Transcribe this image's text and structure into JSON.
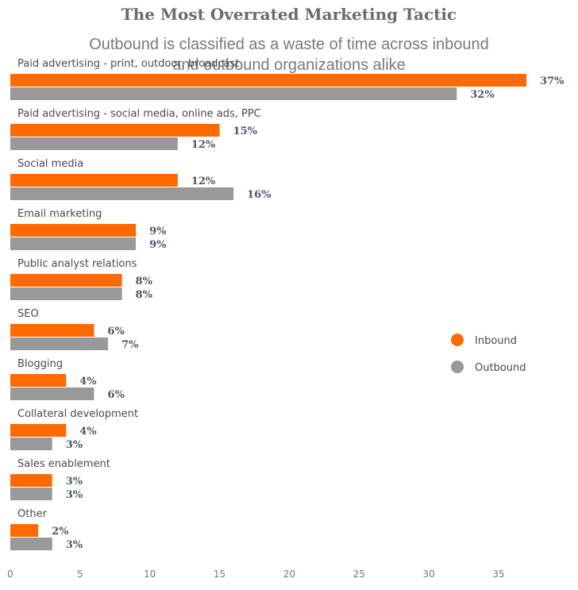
{
  "chart_data": {
    "type": "bar",
    "orientation": "horizontal",
    "title": "The Most Overrated Marketing Tactic",
    "subtitle": "Outbound is classified as a waste of time across inbound and outbound organizations alike",
    "categories": [
      "Paid advertising - print, outdoor, broadcast",
      "Paid advertising - social media, online ads, PPC",
      "Social media",
      "Email marketing",
      "Public analyst relations",
      "SEO",
      "Blogging",
      "Collateral development",
      "Sales enablement",
      "Other"
    ],
    "series": [
      {
        "name": "Inbound",
        "color": "#ff6a00",
        "values": [
          37,
          15,
          12,
          9,
          8,
          6,
          4,
          4,
          3,
          2
        ],
        "labels": [
          "37%",
          "15%",
          "12%",
          "9%",
          "8%",
          "6%",
          "4%",
          "4%",
          "3%",
          "2%"
        ]
      },
      {
        "name": "Outbound",
        "color": "#999999",
        "values": [
          32,
          12,
          16,
          9,
          8,
          7,
          6,
          3,
          3,
          3
        ],
        "labels": [
          "32%",
          "12%",
          "16%",
          "9%",
          "8%",
          "7%",
          "6%",
          "3%",
          "3%",
          "3%"
        ]
      }
    ],
    "xlim": [
      0,
      39
    ],
    "xticks": [
      0,
      5,
      10,
      15,
      20,
      25,
      30,
      35
    ],
    "xlabel": "",
    "ylabel": "",
    "grid": false,
    "legend_position": "right"
  }
}
